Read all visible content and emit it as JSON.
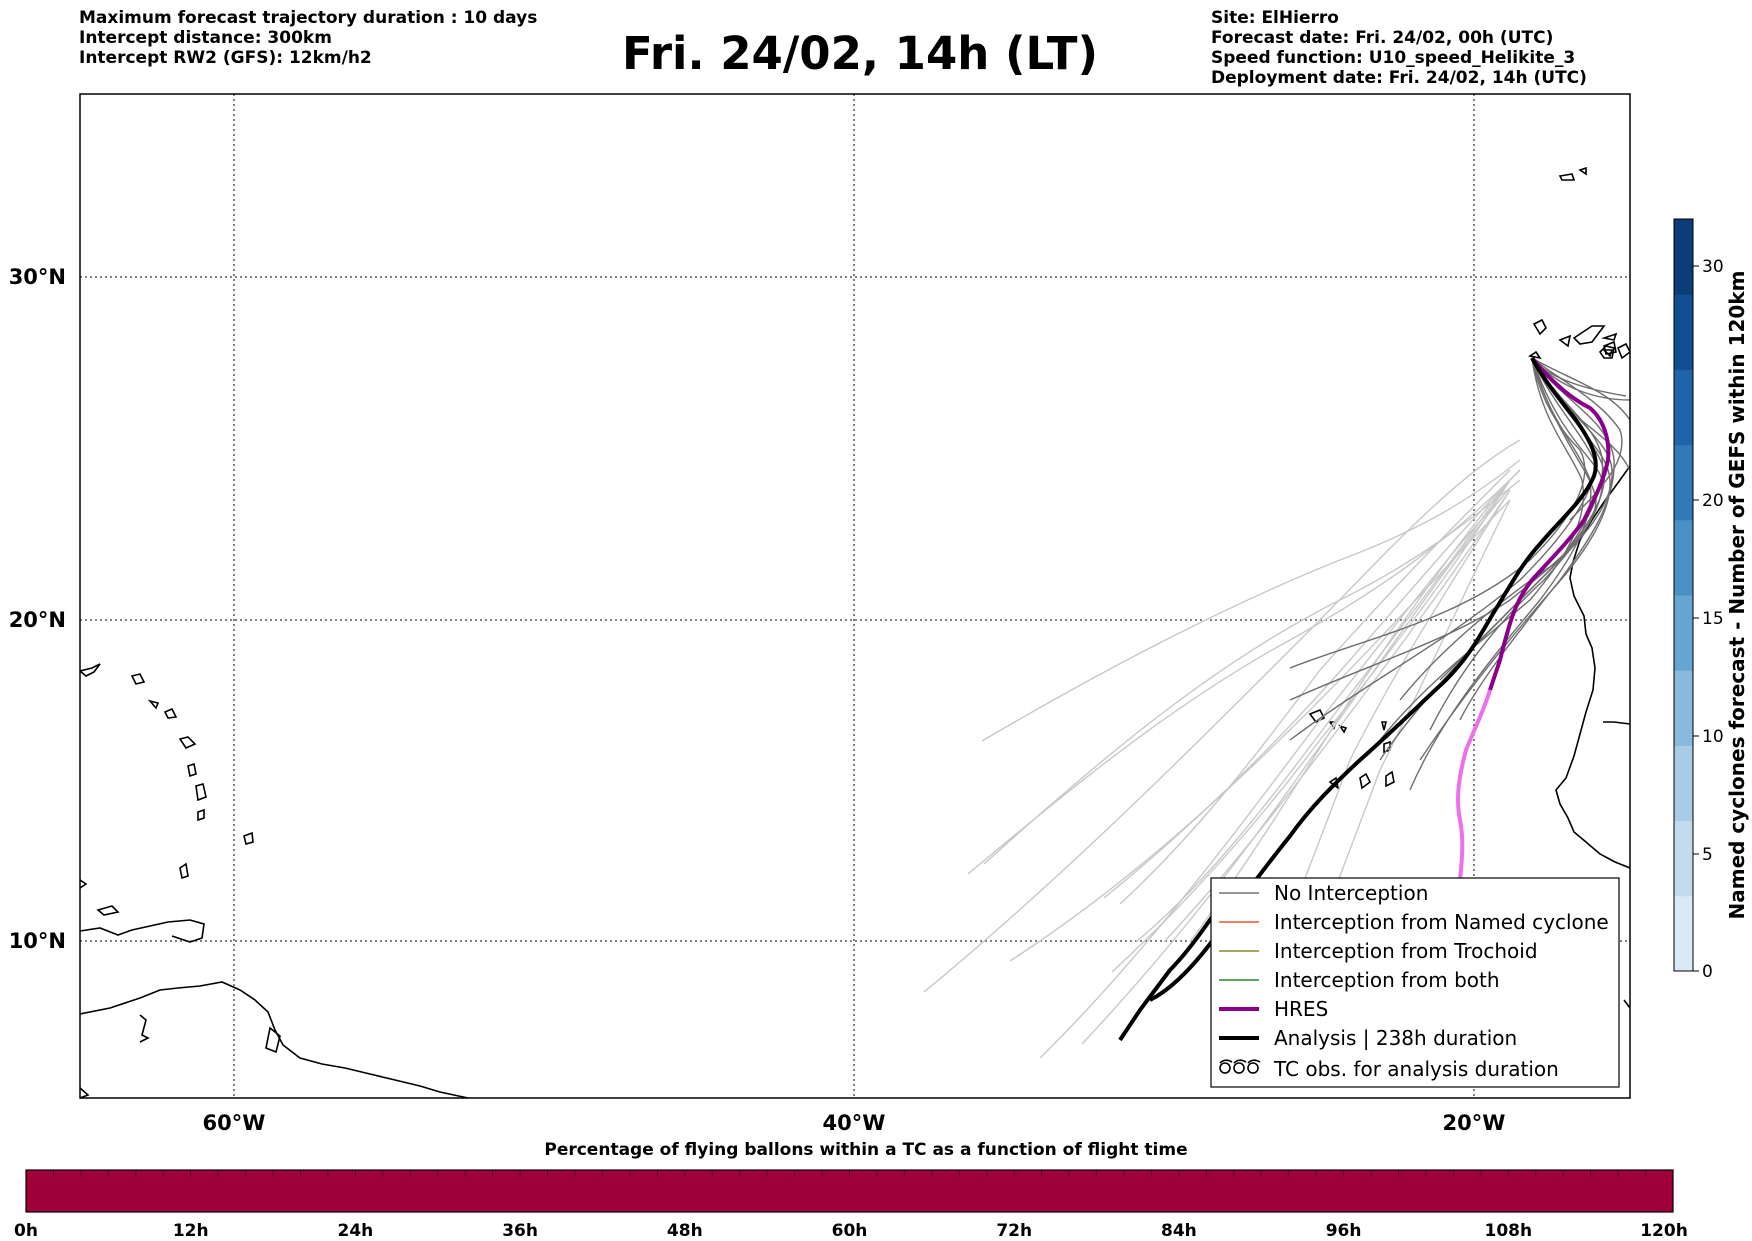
{
  "header_left": {
    "line1": "Maximum forecast trajectory duration : 10 days",
    "line2": "Intercept distance: 300km",
    "line3": "Intercept RW2 (GFS):  12km/h2"
  },
  "title": "Fri. 24/02, 14h (LT)",
  "header_right": {
    "line1": "Site: ElHierro",
    "line2": "Forecast date: Fri. 24/02, 00h (UTC)",
    "line3": "Speed function: U10_speed_Helikite_3",
    "line4": "Deployment date: Fri. 24/02, 14h (UTC)"
  },
  "map": {
    "lat_labels": [
      "30°N",
      "20°N",
      "10°N"
    ],
    "lon_labels": [
      "60°W",
      "40°W",
      "20°W"
    ],
    "extent": {
      "lon_min": -65,
      "lon_max": -15,
      "lat_min": 5.4,
      "lat_max": 34.6
    },
    "gridlines": {
      "lons": [
        -60,
        -40,
        -20
      ],
      "lats": [
        30,
        20,
        10
      ]
    }
  },
  "legend": {
    "items": [
      {
        "label": "No Interception",
        "color": "#777777"
      },
      {
        "label": "Interception from Named cyclone",
        "color": "#e8552a"
      },
      {
        "label": "Interception from Trochoid",
        "color": "#8a8a2a"
      },
      {
        "label": "Interception from both",
        "color": "#2a8a2a"
      },
      {
        "label": "HRES",
        "color": "#8b008b"
      },
      {
        "label": "Analysis | 238h duration",
        "color": "#000000"
      },
      {
        "label": "TC obs. for analysis duration",
        "symbol": "ӨӨӨ"
      }
    ]
  },
  "colorbar": {
    "label": "Named cyclones forecast - Number of GEFS within 120km",
    "ticks": [
      "0",
      "5",
      "10",
      "15",
      "20",
      "30"
    ],
    "colors": [
      "#dbe8f5",
      "#c4daef",
      "#a9cbe6",
      "#89b9dd",
      "#66a4d2",
      "#4a90c6",
      "#3279b8",
      "#1f63a8",
      "#124e92",
      "#0c3d78"
    ]
  },
  "hbar": {
    "title": "Percentage of flying ballons within a TC as a function of flight time",
    "ticks": [
      "0h",
      "12h",
      "24h",
      "36h",
      "48h",
      "60h",
      "72h",
      "84h",
      "96h",
      "108h",
      "120h"
    ],
    "fill_color": "#a0003a",
    "percent": 0
  }
}
